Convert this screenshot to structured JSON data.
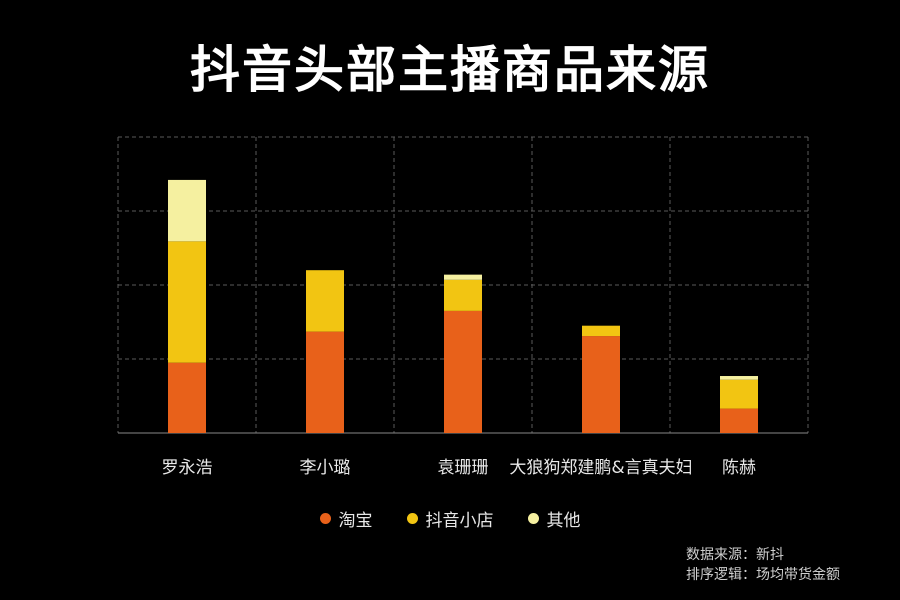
{
  "title": "抖音头部主播商品来源",
  "source_lines": [
    "数据来源：新抖",
    "排序逻辑：场均带货金额"
  ],
  "colors": {
    "淘宝": "#e8611a",
    "抖音小店": "#f2c512",
    "其他": "#f5f0a0",
    "grid": "#5a5a5a",
    "axis": "#888888"
  },
  "chart_data": {
    "type": "bar",
    "stacked": true,
    "title": "抖音头部主播商品来源",
    "categories": [
      "罗永浩",
      "李小璐",
      "袁珊珊",
      "大狼狗郑建鹏&言真夫妇",
      "陈赫"
    ],
    "series": [
      {
        "name": "淘宝",
        "values": [
          0.95,
          1.37,
          1.65,
          1.31,
          0.33
        ]
      },
      {
        "name": "抖音小店",
        "values": [
          1.64,
          0.83,
          0.42,
          0.14,
          0.39
        ]
      },
      {
        "name": "其他",
        "values": [
          0.83,
          0.0,
          0.07,
          0.0,
          0.05
        ]
      }
    ],
    "ylim": [
      0,
      4
    ],
    "grid": true,
    "legend_position": "bottom",
    "xlabel": "",
    "ylabel": ""
  }
}
